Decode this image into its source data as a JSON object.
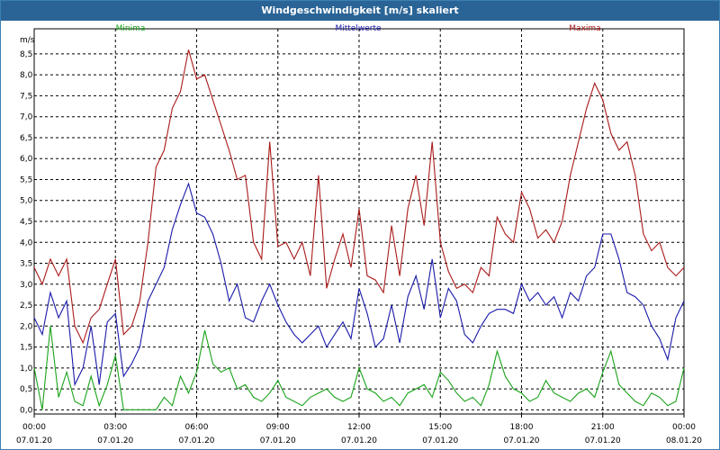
{
  "chart_data": {
    "type": "line",
    "title": "Windgeschwindigkeit [m/s] skaliert",
    "ylabel": "m/s",
    "ylim": [
      -0.1,
      9.1
    ],
    "xlim": [
      0,
      24
    ],
    "grid": true,
    "yticks": [
      "0,0",
      "0,5",
      "1,0",
      "1,5",
      "2,0",
      "2,5",
      "3,0",
      "3,5",
      "4,0",
      "4,5",
      "5,0",
      "5,5",
      "6,0",
      "6,5",
      "7,0",
      "7,5",
      "8,0",
      "8,5"
    ],
    "xticks": [
      {
        "time": "00:00",
        "date": "07.01.20"
      },
      {
        "time": "03:00",
        "date": "07.01.20"
      },
      {
        "time": "06:00",
        "date": "07.01.20"
      },
      {
        "time": "09:00",
        "date": "07.01.20"
      },
      {
        "time": "12:00",
        "date": "07.01.20"
      },
      {
        "time": "15:00",
        "date": "07.01.20"
      },
      {
        "time": "18:00",
        "date": "07.01.20"
      },
      {
        "time": "21:00",
        "date": "07.01.20"
      },
      {
        "time": "00:00",
        "date": "08.01.20"
      }
    ],
    "series": [
      {
        "name": "Minima",
        "color": "#1aa31a",
        "x": [
          0,
          0.3,
          0.6,
          0.9,
          1.2,
          1.5,
          1.8,
          2.1,
          2.4,
          2.7,
          3.0,
          3.3,
          3.6,
          3.9,
          4.2,
          4.5,
          4.8,
          5.1,
          5.4,
          5.7,
          6.0,
          6.3,
          6.6,
          6.9,
          7.2,
          7.5,
          7.8,
          8.1,
          8.4,
          8.7,
          9.0,
          9.3,
          9.6,
          9.9,
          10.2,
          10.5,
          10.8,
          11.1,
          11.4,
          11.7,
          12.0,
          12.3,
          12.6,
          12.9,
          13.2,
          13.5,
          13.8,
          14.1,
          14.4,
          14.7,
          15.0,
          15.3,
          15.6,
          15.9,
          16.2,
          16.5,
          16.8,
          17.1,
          17.4,
          17.7,
          18.0,
          18.3,
          18.6,
          18.9,
          19.2,
          19.5,
          19.8,
          20.1,
          20.4,
          20.7,
          21.0,
          21.3,
          21.6,
          21.9,
          22.2,
          22.5,
          22.8,
          23.1,
          23.4,
          23.7,
          24.0
        ],
        "values": [
          1.0,
          0.0,
          2.0,
          0.3,
          0.9,
          0.2,
          0.1,
          0.8,
          0.1,
          0.6,
          1.3,
          0.0,
          0.0,
          0.0,
          0.0,
          0.0,
          0.3,
          0.1,
          0.8,
          0.4,
          0.9,
          1.9,
          1.1,
          0.9,
          1.0,
          0.5,
          0.6,
          0.3,
          0.2,
          0.4,
          0.7,
          0.3,
          0.2,
          0.1,
          0.3,
          0.4,
          0.5,
          0.3,
          0.2,
          0.3,
          1.0,
          0.5,
          0.4,
          0.2,
          0.3,
          0.1,
          0.4,
          0.5,
          0.6,
          0.3,
          0.9,
          0.7,
          0.4,
          0.2,
          0.3,
          0.1,
          0.6,
          1.4,
          0.8,
          0.5,
          0.4,
          0.2,
          0.3,
          0.7,
          0.4,
          0.3,
          0.2,
          0.4,
          0.5,
          0.3,
          0.9,
          1.4,
          0.6,
          0.4,
          0.2,
          0.1,
          0.4,
          0.3,
          0.1,
          0.2,
          1.0
        ]
      },
      {
        "name": "Mittelwerte",
        "color": "#1a1aaa",
        "x": [
          0,
          0.3,
          0.6,
          0.9,
          1.2,
          1.5,
          1.8,
          2.1,
          2.4,
          2.7,
          3.0,
          3.3,
          3.6,
          3.9,
          4.2,
          4.5,
          4.8,
          5.1,
          5.4,
          5.7,
          6.0,
          6.3,
          6.6,
          6.9,
          7.2,
          7.5,
          7.8,
          8.1,
          8.4,
          8.7,
          9.0,
          9.3,
          9.6,
          9.9,
          10.2,
          10.5,
          10.8,
          11.1,
          11.4,
          11.7,
          12.0,
          12.3,
          12.6,
          12.9,
          13.2,
          13.5,
          13.8,
          14.1,
          14.4,
          14.7,
          15.0,
          15.3,
          15.6,
          15.9,
          16.2,
          16.5,
          16.8,
          17.1,
          17.4,
          17.7,
          18.0,
          18.3,
          18.6,
          18.9,
          19.2,
          19.5,
          19.8,
          20.1,
          20.4,
          20.7,
          21.0,
          21.3,
          21.6,
          21.9,
          22.2,
          22.5,
          22.8,
          23.1,
          23.4,
          23.7,
          24.0
        ],
        "values": [
          2.2,
          1.8,
          2.8,
          2.2,
          2.6,
          0.6,
          1.0,
          2.0,
          0.6,
          2.1,
          2.3,
          0.8,
          1.1,
          1.5,
          2.6,
          3.0,
          3.4,
          4.3,
          4.9,
          5.4,
          4.7,
          4.6,
          4.2,
          3.5,
          2.6,
          3.0,
          2.2,
          2.1,
          2.6,
          3.0,
          2.5,
          2.1,
          1.8,
          1.6,
          1.8,
          2.0,
          1.5,
          1.8,
          2.1,
          1.7,
          2.9,
          2.3,
          1.5,
          1.7,
          2.5,
          1.6,
          2.7,
          3.2,
          2.4,
          3.6,
          2.2,
          2.9,
          2.6,
          1.8,
          1.6,
          2.0,
          2.3,
          2.4,
          2.4,
          2.3,
          3.0,
          2.6,
          2.8,
          2.5,
          2.7,
          2.2,
          2.8,
          2.6,
          3.2,
          3.4,
          4.2,
          4.2,
          3.6,
          2.8,
          2.7,
          2.5,
          2.0,
          1.7,
          1.2,
          2.2,
          2.6
        ]
      },
      {
        "name": "Maxima",
        "color": "#aa1a1a",
        "x": [
          0,
          0.3,
          0.6,
          0.9,
          1.2,
          1.5,
          1.8,
          2.1,
          2.4,
          2.7,
          3.0,
          3.3,
          3.6,
          3.9,
          4.2,
          4.5,
          4.8,
          5.1,
          5.4,
          5.7,
          6.0,
          6.3,
          6.6,
          6.9,
          7.2,
          7.5,
          7.8,
          8.1,
          8.4,
          8.7,
          9.0,
          9.3,
          9.6,
          9.9,
          10.2,
          10.5,
          10.8,
          11.1,
          11.4,
          11.7,
          12.0,
          12.3,
          12.6,
          12.9,
          13.2,
          13.5,
          13.8,
          14.1,
          14.4,
          14.7,
          15.0,
          15.3,
          15.6,
          15.9,
          16.2,
          16.5,
          16.8,
          17.1,
          17.4,
          17.7,
          18.0,
          18.3,
          18.6,
          18.9,
          19.2,
          19.5,
          19.8,
          20.1,
          20.4,
          20.7,
          21.0,
          21.3,
          21.6,
          21.9,
          22.2,
          22.5,
          22.8,
          23.1,
          23.4,
          23.7,
          24.0
        ],
        "values": [
          3.4,
          3.0,
          3.6,
          3.2,
          3.6,
          2.0,
          1.6,
          2.2,
          2.4,
          3.0,
          3.6,
          1.8,
          2.0,
          2.6,
          4.0,
          5.8,
          6.2,
          7.2,
          7.6,
          8.6,
          7.9,
          8.0,
          7.4,
          6.8,
          6.2,
          5.5,
          5.6,
          4.0,
          3.6,
          6.4,
          3.9,
          4.0,
          3.6,
          4.0,
          3.2,
          5.6,
          2.9,
          3.6,
          4.2,
          3.4,
          4.8,
          3.2,
          3.1,
          2.8,
          4.4,
          3.2,
          4.8,
          5.6,
          4.4,
          6.4,
          4.0,
          3.3,
          2.9,
          3.0,
          2.8,
          3.4,
          3.2,
          4.6,
          4.2,
          4.0,
          5.2,
          4.8,
          4.1,
          4.3,
          4.0,
          4.5,
          5.6,
          6.4,
          7.2,
          7.8,
          7.4,
          6.6,
          6.2,
          6.4,
          5.6,
          4.2,
          3.8,
          4.0,
          3.4,
          3.2,
          3.4
        ]
      }
    ]
  }
}
